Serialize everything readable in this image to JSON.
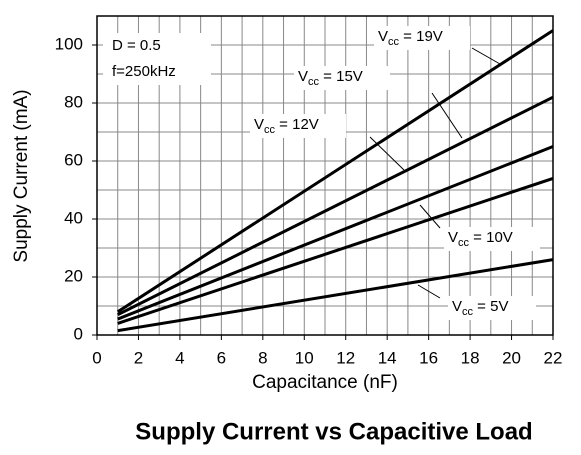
{
  "chart_data": {
    "type": "line",
    "title": "Supply Current vs Capacitive Load",
    "x_label": "Capacitance (nF)",
    "y_label": "Supply Current (mA)",
    "annotations": [
      "D = 0.5",
      "f=250kHz"
    ],
    "x": [
      1,
      22
    ],
    "series": [
      {
        "name": "Vcc = 19V",
        "color": "#000000",
        "values": [
          8,
          105
        ]
      },
      {
        "name": "Vcc = 15V",
        "color": "#000000",
        "values": [
          7,
          82
        ]
      },
      {
        "name": "Vcc = 12V",
        "color": "#000000",
        "values": [
          5.5,
          65
        ]
      },
      {
        "name": "Vcc = 10V",
        "color": "#000000",
        "values": [
          4,
          54
        ]
      },
      {
        "name": "Vcc = 5V",
        "color": "#000000",
        "values": [
          1.5,
          26
        ]
      }
    ],
    "xlim": [
      0,
      22
    ],
    "xticks": [
      0,
      2,
      4,
      6,
      8,
      10,
      12,
      14,
      16,
      18,
      20,
      22
    ],
    "ylim": [
      0,
      110
    ],
    "yticks": [
      0,
      20,
      40,
      60,
      80,
      100
    ],
    "grid": true
  }
}
